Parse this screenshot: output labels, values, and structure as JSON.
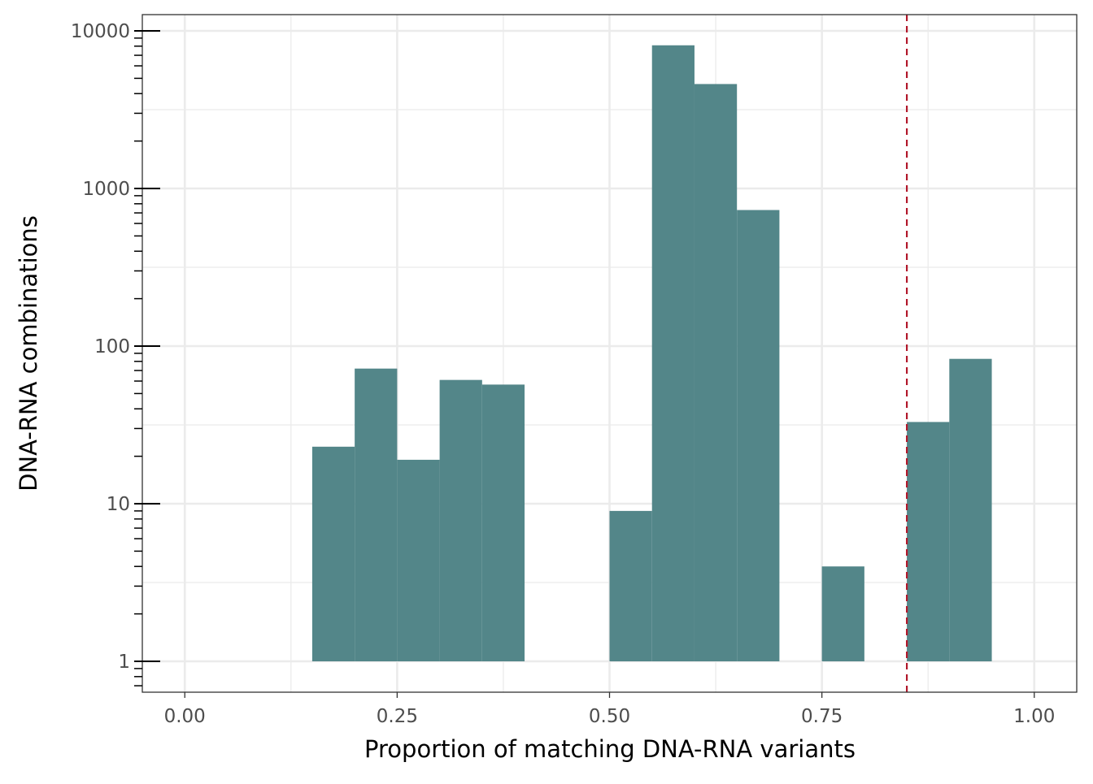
{
  "chart_data": {
    "type": "bar",
    "subtype": "histogram",
    "title": "",
    "xlabel": "Proportion of matching DNA-RNA variants",
    "ylabel": "DNA-RNA combinations",
    "xlim": [
      -0.05,
      1.05
    ],
    "ylim": [
      0.637,
      12680
    ],
    "y_scale": "log10",
    "grid": true,
    "x_ticks": [
      0,
      0.25,
      0.5,
      0.75,
      1.0
    ],
    "x_tick_labels": [
      "0.00",
      "0.25",
      "0.50",
      "0.75",
      "1.00"
    ],
    "y_ticks": [
      1,
      10,
      100,
      1000,
      10000
    ],
    "y_tick_labels": [
      "1",
      "10",
      "100",
      "1000",
      "10000"
    ],
    "bin_width": 0.05,
    "bins": [
      {
        "x0": 0.15,
        "x1": 0.2,
        "count": 23
      },
      {
        "x0": 0.2,
        "x1": 0.25,
        "count": 72
      },
      {
        "x0": 0.25,
        "x1": 0.3,
        "count": 19
      },
      {
        "x0": 0.3,
        "x1": 0.35,
        "count": 61
      },
      {
        "x0": 0.35,
        "x1": 0.4,
        "count": 57
      },
      {
        "x0": 0.5,
        "x1": 0.55,
        "count": 9
      },
      {
        "x0": 0.55,
        "x1": 0.6,
        "count": 8100
      },
      {
        "x0": 0.6,
        "x1": 0.65,
        "count": 4600
      },
      {
        "x0": 0.65,
        "x1": 0.7,
        "count": 730
      },
      {
        "x0": 0.75,
        "x1": 0.8,
        "count": 4
      },
      {
        "x0": 0.85,
        "x1": 0.9,
        "count": 33
      },
      {
        "x0": 0.9,
        "x1": 0.95,
        "count": 83
      }
    ],
    "reference_line": {
      "x": 0.85,
      "style": "dashed",
      "color": "#b2182b"
    },
    "bar_color": "#538689"
  }
}
